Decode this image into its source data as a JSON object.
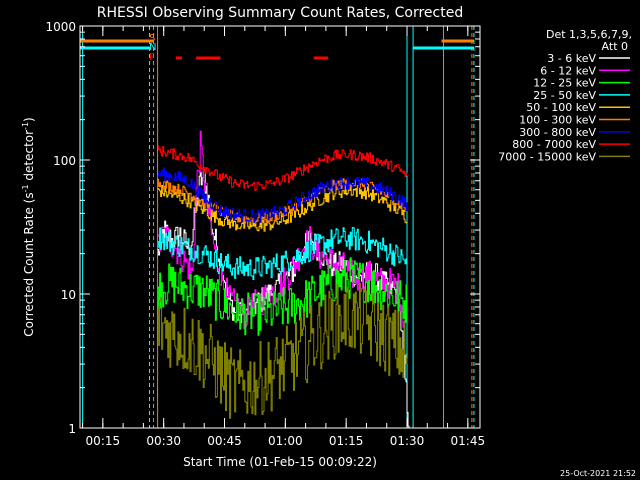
{
  "chart_data": {
    "type": "line",
    "title": "RHESSI Observing Summary Count Rates, Corrected",
    "xlabel": "Start Time (01-Feb-15 00:09:22)",
    "ylabel": "Corrected Count Rate (s",
    "ylabel_sup1": "-1",
    "ylabel_mid": " detector",
    "ylabel_sup2": "-1",
    "ylabel_end": ")",
    "y_scale": "log",
    "ylim": [
      1,
      1000
    ],
    "y_ticks": [
      {
        "value": 1,
        "label": "1"
      },
      {
        "value": 10,
        "label": "10"
      },
      {
        "value": 100,
        "label": "100"
      },
      {
        "value": 1000,
        "label": "1000"
      }
    ],
    "xlim": [
      "00:09:22",
      "01:48:00"
    ],
    "x_ticks": [
      {
        "minutes": 15,
        "label": "00:15"
      },
      {
        "minutes": 30,
        "label": "00:30"
      },
      {
        "minutes": 45,
        "label": "00:45"
      },
      {
        "minutes": 60,
        "label": "01:00"
      },
      {
        "minutes": 75,
        "label": "01:15"
      },
      {
        "minutes": 90,
        "label": "01:30"
      },
      {
        "minutes": 105,
        "label": "01:45"
      }
    ],
    "legend_placement": "right",
    "legend_header": [
      "Det 1,3,5,6,7,9,",
      "Att 0"
    ],
    "flag_labels": [
      "S",
      "N",
      "F"
    ],
    "timestamp": "25-Oct-2021 21:52",
    "colors": {
      "flag_S": "#ff8000",
      "flag_N": "#00ffff",
      "flag_F": "#ff0000"
    },
    "vlines": [
      {
        "minutes": 10.0,
        "color": "#00ffff"
      },
      {
        "minutes": 26.5,
        "color": "#00ffff",
        "dashed": true
      },
      {
        "minutes": 27.5,
        "color": "#ff8000",
        "dashed": true
      },
      {
        "minutes": 28.5,
        "color": "#ff8000"
      },
      {
        "minutes": 90.0,
        "color": "#00ffff"
      },
      {
        "minutes": 91.5,
        "color": "#00ffff"
      },
      {
        "minutes": 99.0,
        "color": "#ff8000"
      },
      {
        "minutes": 106.0,
        "color": "#ff8000",
        "dashed": true
      },
      {
        "minutes": 106.5,
        "color": "#00ffff",
        "dashed": true
      }
    ],
    "flags": {
      "S": [
        [
          9.4,
          27.5
        ],
        [
          98.5,
          106.5
        ]
      ],
      "N": [
        [
          9.4,
          26.5
        ],
        [
          91.5,
          106.5
        ]
      ],
      "F": [
        [
          33.0,
          34.5
        ],
        [
          38.0,
          44.0
        ],
        [
          67.0,
          70.5
        ]
      ]
    },
    "series": [
      {
        "name": "3 - 6 keV",
        "color": "#ffffff",
        "x": [
          28.5,
          30,
          32,
          34,
          36,
          37,
          38,
          39,
          40,
          41,
          42,
          44,
          46,
          48,
          50,
          52,
          54,
          56,
          58,
          60,
          62,
          64,
          66,
          68,
          70,
          72,
          74,
          76,
          78,
          80,
          82,
          84,
          86,
          88,
          89,
          90,
          90.5
        ],
        "y": [
          20,
          30,
          25,
          28,
          22,
          26,
          48,
          70,
          75,
          50,
          30,
          18,
          9,
          7,
          7,
          8,
          9,
          10,
          11,
          13,
          15,
          20,
          26,
          22,
          18,
          16,
          17,
          15,
          13,
          14,
          14,
          12,
          11,
          10,
          3.5,
          1.5,
          1
        ]
      },
      {
        "name": "6 - 12 keV",
        "color": "#ff00ff",
        "x": [
          28.5,
          30,
          32,
          34,
          36,
          37,
          38,
          39,
          40,
          41,
          42,
          44,
          46,
          48,
          50,
          52,
          54,
          56,
          58,
          60,
          62,
          64,
          66,
          68,
          70,
          72,
          74,
          76,
          78,
          80,
          82,
          84,
          86,
          88,
          89,
          90
        ],
        "y": [
          22,
          28,
          24,
          20,
          16,
          14,
          60,
          125,
          70,
          40,
          25,
          14,
          9,
          8,
          7,
          8,
          9,
          10,
          11,
          13,
          16,
          22,
          25,
          20,
          18,
          17,
          16,
          14,
          13,
          14,
          13,
          12,
          12,
          11,
          7,
          6
        ]
      },
      {
        "name": "12 - 25 keV",
        "color": "#00ff00",
        "x": [
          28.5,
          32,
          36,
          40,
          44,
          48,
          52,
          56,
          60,
          64,
          68,
          72,
          76,
          80,
          84,
          88,
          90
        ],
        "y": [
          11,
          12,
          11,
          10.5,
          8.5,
          7.3,
          7.0,
          7.2,
          7.8,
          8.8,
          10.5,
          12.2,
          13.2,
          12.4,
          10.6,
          9.2,
          8.5
        ]
      },
      {
        "name": "25 - 50 keV",
        "color": "#00ffff",
        "x": [
          28.5,
          32,
          36,
          40,
          44,
          48,
          52,
          56,
          60,
          64,
          68,
          72,
          76,
          80,
          84,
          88,
          90
        ],
        "y": [
          27,
          24,
          22,
          20,
          17,
          15.6,
          15.5,
          16,
          17.5,
          20,
          23,
          25.5,
          26,
          24.5,
          22,
          19,
          17
        ]
      },
      {
        "name": "50 - 100 keV",
        "color": "#ffc000",
        "x": [
          28.5,
          32,
          36,
          40,
          44,
          48,
          52,
          56,
          60,
          64,
          68,
          72,
          76,
          80,
          84,
          88,
          90
        ],
        "y": [
          60,
          55,
          50,
          42,
          36,
          33,
          32,
          33,
          36,
          42,
          50,
          57,
          60,
          57,
          50,
          42,
          37
        ]
      },
      {
        "name": "100 - 300 keV",
        "color": "#ff8000",
        "x": [
          28.5,
          32,
          36,
          40,
          44,
          48,
          52,
          56,
          60,
          64,
          68,
          72,
          76,
          80,
          84,
          88,
          90
        ],
        "y": [
          68,
          63,
          57,
          48,
          41,
          37,
          36,
          37,
          41,
          48,
          57,
          65,
          68,
          65,
          57,
          48,
          42
        ]
      },
      {
        "name": "300 - 800 keV",
        "color": "#0000ff",
        "x": [
          28.5,
          32,
          36,
          40,
          44,
          48,
          52,
          56,
          60,
          64,
          68,
          72,
          76,
          80,
          84,
          88,
          90
        ],
        "y": [
          80,
          76,
          70,
          52,
          42,
          39,
          38,
          39,
          43,
          51,
          60,
          66,
          68,
          66,
          60,
          52,
          46
        ]
      },
      {
        "name": "800 - 7000 keV",
        "color": "#ff0000",
        "x": [
          28.5,
          32,
          36,
          40,
          44,
          48,
          52,
          56,
          60,
          64,
          68,
          72,
          76,
          80,
          84,
          88,
          90
        ],
        "y": [
          118,
          112,
          104,
          88,
          74,
          66,
          64,
          66,
          72,
          84,
          98,
          108,
          110,
          105,
          96,
          85,
          75
        ]
      },
      {
        "name": "7000 - 15000 keV",
        "color": "#808000",
        "x": [
          28.5,
          32,
          36,
          40,
          44,
          46,
          48,
          52,
          56,
          60,
          64,
          68,
          72,
          76,
          80,
          84,
          88,
          90
        ],
        "y": [
          6.0,
          5.2,
          4.5,
          3.6,
          2.6,
          2.2,
          2.0,
          2.2,
          2.5,
          3.0,
          3.8,
          5.0,
          6.2,
          6.7,
          6.0,
          5.0,
          4.0,
          3.2
        ]
      }
    ]
  }
}
